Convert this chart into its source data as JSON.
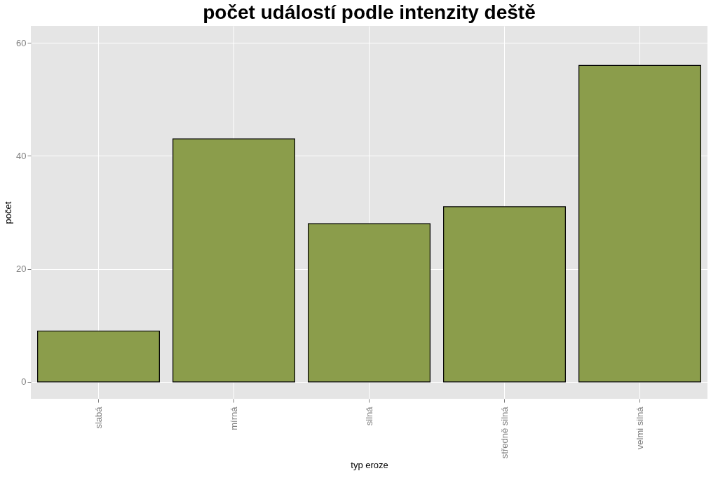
{
  "chart_data": {
    "type": "bar",
    "title": "počet událostí podle intenzity deště",
    "xlabel": "typ eroze",
    "ylabel": "počet",
    "categories": [
      "slabá",
      "mírná",
      "silná",
      "středně silná",
      "velmi silná"
    ],
    "values": [
      9,
      43,
      28,
      31,
      56
    ],
    "color": "#8b9d4b",
    "ylim": [
      -3,
      63
    ],
    "yticks": [
      0,
      20,
      40,
      60
    ],
    "grid": true
  }
}
